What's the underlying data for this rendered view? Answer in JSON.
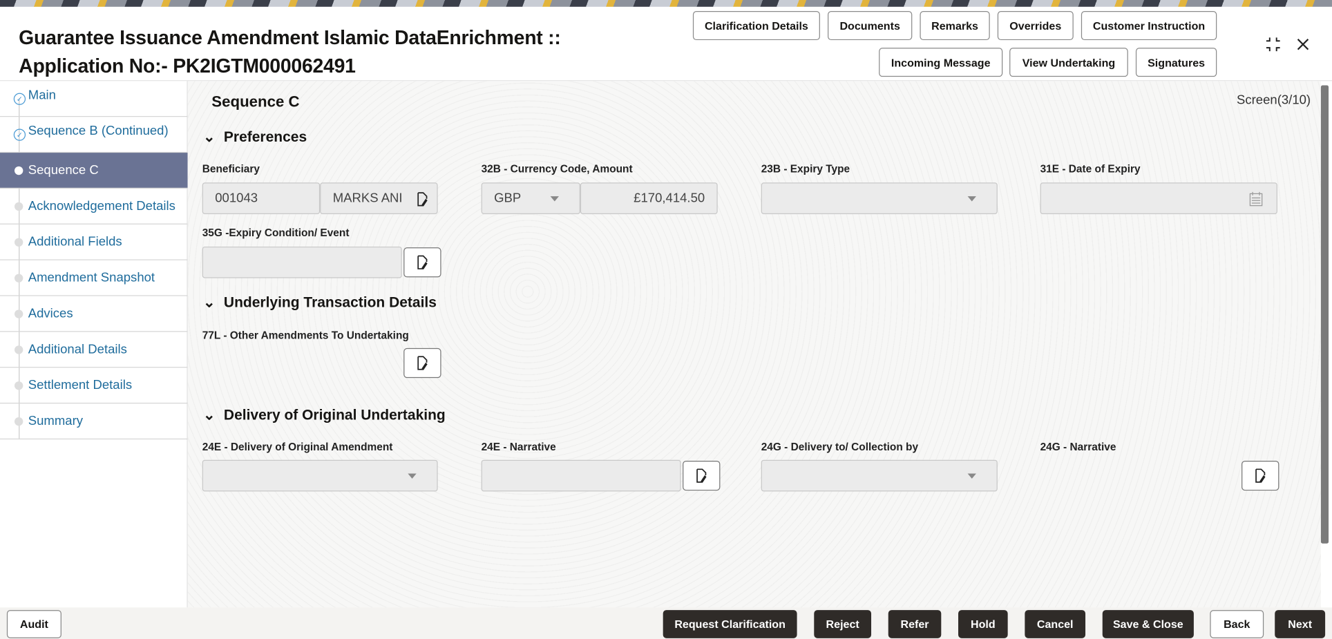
{
  "header": {
    "title_line1": "Guarantee Issuance Amendment Islamic DataEnrichment ::",
    "title_line2": "Application No:- PK2IGTM000062491",
    "buttons": [
      "Clarification Details",
      "Documents",
      "Remarks",
      "Overrides",
      "Customer Instruction",
      "Incoming Message",
      "View Undertaking",
      "Signatures"
    ]
  },
  "sidebar": {
    "items": [
      {
        "label": "Main",
        "state": "done"
      },
      {
        "label": "Sequence B (Continued)",
        "state": "done"
      },
      {
        "label": "Sequence C",
        "state": "active"
      },
      {
        "label": "Acknowledgement Details"
      },
      {
        "label": "Additional Fields"
      },
      {
        "label": "Amendment Snapshot"
      },
      {
        "label": "Advices"
      },
      {
        "label": "Additional Details"
      },
      {
        "label": "Settlement Details"
      },
      {
        "label": "Summary"
      }
    ]
  },
  "main": {
    "title": "Sequence C",
    "screen": "Screen(3/10)",
    "preferences": {
      "title": "Preferences",
      "beneficiary_label": "Beneficiary",
      "beneficiary_id": "001043",
      "beneficiary_name": "MARKS ANI",
      "currency_label": "32B - Currency Code, Amount",
      "currency": "GBP",
      "amount": "£170,414.50",
      "expiry_type_label": "23B - Expiry Type",
      "expiry_date_label": "31E - Date of Expiry",
      "expiry_condition_label": "35G -Expiry Condition/ Event"
    },
    "underlying": {
      "title": "Underlying Transaction Details",
      "other_amendments_label": "77L - Other Amendments To Undertaking"
    },
    "delivery": {
      "title": "Delivery of Original Undertaking",
      "delivery_amendment_label": "24E - Delivery of Original Amendment",
      "narrative_24e_label": "24E - Narrative",
      "delivery_to_label": "24G - Delivery to/ Collection by",
      "narrative_24g_label": "24G - Narrative"
    }
  },
  "footer": {
    "audit": "Audit",
    "request_clarification": "Request Clarification",
    "reject": "Reject",
    "refer": "Refer",
    "hold": "Hold",
    "cancel": "Cancel",
    "save_close": "Save & Close",
    "back": "Back",
    "next": "Next"
  }
}
